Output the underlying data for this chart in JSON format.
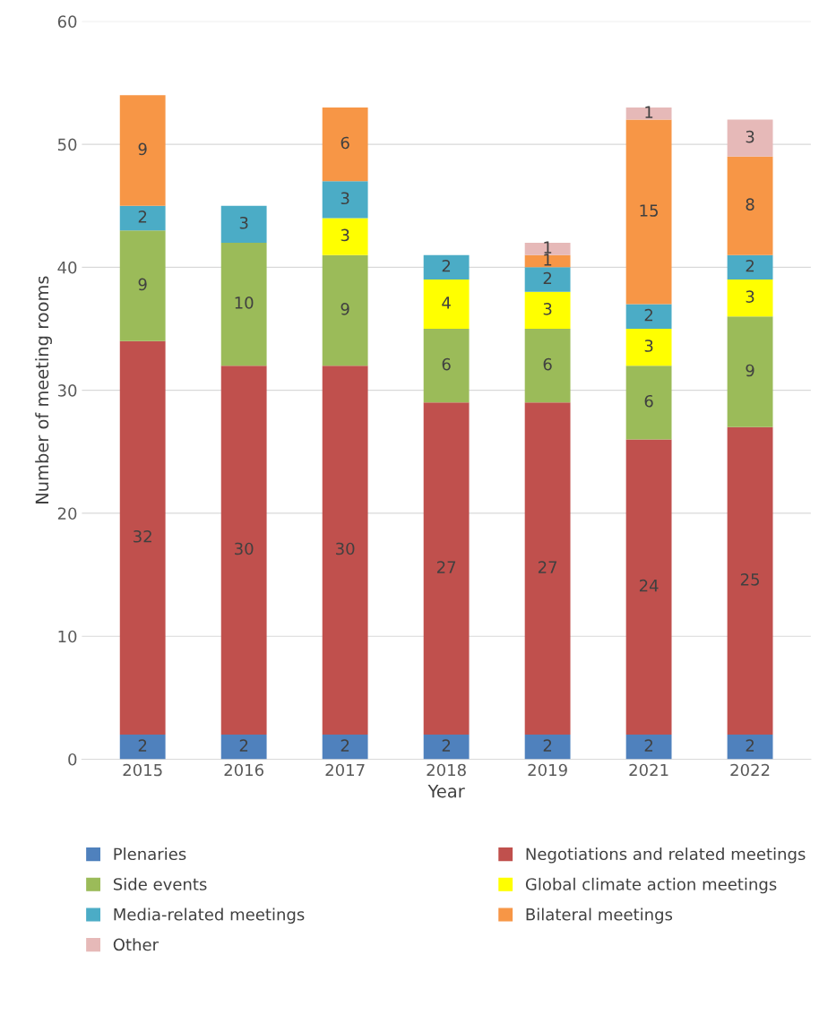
{
  "chart_data": {
    "type": "bar",
    "stacked": true,
    "xlabel": "Year",
    "ylabel": "Number of meeting rooms",
    "categories": [
      "2015",
      "2016",
      "2017",
      "2018",
      "2019",
      "2021",
      "2022"
    ],
    "series": [
      {
        "name": "Plenaries",
        "color": "#4f81bd",
        "values": [
          2,
          2,
          2,
          2,
          2,
          2,
          2
        ]
      },
      {
        "name": "Negotiations and related meetings",
        "color": "#c0504d",
        "values": [
          32,
          30,
          30,
          27,
          27,
          24,
          25
        ]
      },
      {
        "name": "Side events",
        "color": "#9bbb59",
        "values": [
          9,
          10,
          9,
          6,
          6,
          6,
          9
        ]
      },
      {
        "name": "Global climate action meetings",
        "color": "#ffff00",
        "values": [
          null,
          null,
          3,
          4,
          3,
          3,
          3
        ]
      },
      {
        "name": "Media-related meetings",
        "color": "#4bacc6",
        "values": [
          2,
          3,
          3,
          2,
          2,
          2,
          2
        ]
      },
      {
        "name": "Bilateral meetings",
        "color": "#f79646",
        "values": [
          9,
          null,
          6,
          null,
          1,
          15,
          8
        ]
      },
      {
        "name": "Other",
        "color": "#e6b9b8",
        "values": [
          null,
          null,
          null,
          null,
          1,
          1,
          3
        ]
      }
    ],
    "ylim": [
      0,
      60
    ],
    "yticks": [
      0,
      10,
      20,
      30,
      40,
      50,
      60
    ],
    "grid": "y",
    "data_labels": true,
    "legend": "bottom"
  }
}
